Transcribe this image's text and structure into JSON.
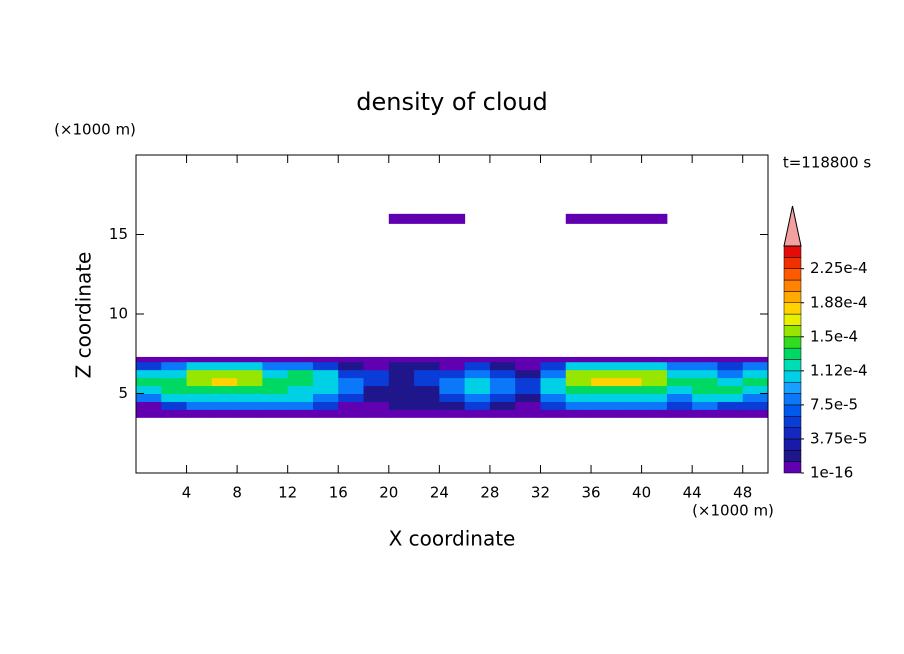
{
  "chart_data": {
    "type": "contour",
    "title": "density of cloud",
    "x_label": "X coordinate",
    "y_label": "Z coordinate",
    "x_unit": "(×1000 m)",
    "y_unit": "(×1000 m)",
    "time_label": "t=118800 s",
    "xlim": [
      0,
      50
    ],
    "ylim": [
      0,
      20
    ],
    "xticks": [
      4,
      8,
      12,
      16,
      20,
      24,
      28,
      32,
      36,
      40,
      44,
      48
    ],
    "yticks": [
      5,
      10,
      15
    ],
    "x_edges": [
      0,
      2,
      4,
      6,
      8,
      10,
      12,
      14,
      16,
      18,
      20,
      22,
      24,
      26,
      28,
      30,
      32,
      34,
      36,
      38,
      40,
      42,
      44,
      46,
      48,
      50
    ],
    "rows": [
      {
        "z": [
          3.5,
          4
        ],
        "values": [
          1e-16,
          1e-16,
          1e-16,
          1e-16,
          1e-16,
          1e-16,
          1e-16,
          1e-16,
          1e-16,
          1e-16,
          1e-16,
          1e-16,
          1e-16,
          1e-16,
          1e-16,
          1e-16,
          1e-16,
          1e-16,
          1e-16,
          1e-16,
          1e-16,
          1e-16,
          1e-16,
          1e-16,
          1e-16
        ]
      },
      {
        "z": [
          4,
          4.5
        ],
        "values": [
          1e-16,
          5e-05,
          8e-05,
          8e-05,
          8e-05,
          8e-05,
          8e-05,
          5e-05,
          1e-16,
          1e-16,
          2e-05,
          2e-05,
          2e-05,
          5e-05,
          2e-05,
          1e-16,
          5e-05,
          8e-05,
          8e-05,
          8e-05,
          8e-05,
          5e-05,
          8e-05,
          5e-05,
          5e-05
        ]
      },
      {
        "z": [
          4.5,
          5
        ],
        "values": [
          8e-05,
          0.00011,
          0.00011,
          0.00011,
          0.00011,
          0.00011,
          0.00011,
          8e-05,
          5e-05,
          2e-05,
          2e-05,
          2e-05,
          5e-05,
          8e-05,
          5e-05,
          2e-05,
          8e-05,
          0.00011,
          0.00011,
          0.00011,
          0.00011,
          8e-05,
          0.00011,
          0.00011,
          8e-05
        ]
      },
      {
        "z": [
          5,
          5.5
        ],
        "values": [
          0.00011,
          0.00013,
          0.00013,
          0.00013,
          0.00013,
          0.00013,
          0.00011,
          0.00011,
          8e-05,
          2e-05,
          2e-05,
          2e-05,
          8e-05,
          0.00011,
          8e-05,
          5e-05,
          0.00011,
          0.00013,
          0.00013,
          0.00013,
          0.00013,
          0.00011,
          0.00013,
          0.00013,
          0.00011
        ]
      },
      {
        "z": [
          5.5,
          6
        ],
        "values": [
          0.00013,
          0.00013,
          0.00016,
          0.00018,
          0.00016,
          0.00013,
          0.00013,
          0.00011,
          8e-05,
          5e-05,
          2e-05,
          5e-05,
          8e-05,
          0.00011,
          8e-05,
          5e-05,
          0.00011,
          0.00016,
          0.00018,
          0.00018,
          0.00016,
          0.00013,
          0.00013,
          0.00011,
          0.00013
        ]
      },
      {
        "z": [
          6,
          6.5
        ],
        "values": [
          0.00011,
          0.00011,
          0.00016,
          0.00016,
          0.00016,
          0.00011,
          0.00013,
          0.00011,
          5e-05,
          5e-05,
          2e-05,
          5e-05,
          5e-05,
          8e-05,
          5e-05,
          2e-05,
          8e-05,
          0.00016,
          0.00016,
          0.00016,
          0.00016,
          0.00011,
          0.00011,
          8e-05,
          0.00011
        ]
      },
      {
        "z": [
          6.5,
          7
        ],
        "values": [
          5e-05,
          8e-05,
          0.00011,
          0.00011,
          0.00011,
          8e-05,
          8e-05,
          5e-05,
          2e-05,
          1e-16,
          2e-05,
          2e-05,
          1e-16,
          5e-05,
          2e-05,
          1e-16,
          5e-05,
          0.00011,
          0.00011,
          0.00011,
          0.00011,
          8e-05,
          8e-05,
          5e-05,
          8e-05
        ]
      },
      {
        "z": [
          7,
          7.3
        ],
        "values": [
          1e-16,
          1e-16,
          1e-16,
          1e-16,
          1e-16,
          1e-16,
          1e-16,
          1e-16,
          1e-16,
          1e-16,
          1e-16,
          1e-16,
          1e-16,
          1e-16,
          1e-16,
          1e-16,
          1e-16,
          1e-16,
          1e-16,
          1e-16,
          1e-16,
          1e-16,
          1e-16,
          1e-16,
          1e-16
        ]
      },
      {
        "z": [
          15.7,
          16.3
        ],
        "values": [
          null,
          null,
          null,
          null,
          null,
          null,
          null,
          null,
          null,
          null,
          1e-16,
          1e-16,
          1e-16,
          null,
          null,
          null,
          null,
          1e-16,
          1e-16,
          1e-16,
          1e-16,
          null,
          null,
          null,
          null
        ]
      }
    ],
    "colorbar": {
      "levels": [
        1e-16,
        1.25e-05,
        2.5e-05,
        3.75e-05,
        5e-05,
        6.25e-05,
        7.5e-05,
        8.75e-05,
        0.0001,
        0.0001125,
        0.000125,
        0.0001375,
        0.00015,
        0.0001625,
        0.000175,
        0.0001875,
        0.0002,
        0.0002125,
        0.000225,
        0.0002375,
        0.00025
      ],
      "colors": [
        "#6000b0",
        "#20168c",
        "#1a1aa8",
        "#1428c0",
        "#0a3cd8",
        "#0058ec",
        "#0a78f8",
        "#16a0ff",
        "#00d0e6",
        "#00dcb4",
        "#00d864",
        "#32dc1e",
        "#96e600",
        "#e6f000",
        "#ffd200",
        "#ffaa00",
        "#ff8200",
        "#ff5a00",
        "#f03000",
        "#e60a0a"
      ],
      "extend_color": "#f4a0a0",
      "ticks": [
        {
          "value": 1e-16,
          "label": "1e-16"
        },
        {
          "value": 3.75e-05,
          "label": "3.75e-5"
        },
        {
          "value": 7.5e-05,
          "label": "7.5e-5"
        },
        {
          "value": 0.0001125,
          "label": "1.12e-4"
        },
        {
          "value": 0.00015,
          "label": "1.5e-4"
        },
        {
          "value": 0.0001875,
          "label": "1.88e-4"
        },
        {
          "value": 0.000225,
          "label": "2.25e-4"
        }
      ]
    }
  }
}
